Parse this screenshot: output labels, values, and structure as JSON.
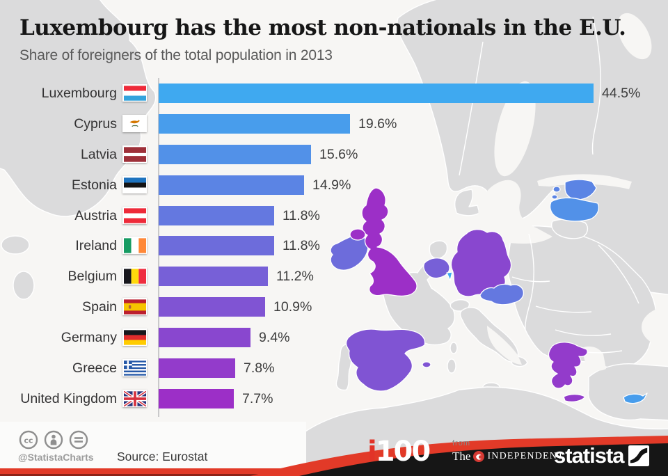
{
  "title": "Luxembourg has the most non-nationals in the E.U.",
  "subtitle": "Share of foreigners of the total population in 2013",
  "chart_data": {
    "type": "bar",
    "orientation": "horizontal",
    "title": "Luxembourg has the most non-nationals in the E.U.",
    "subtitle": "Share of foreigners of the total population in 2013",
    "unit": "%",
    "categories": [
      "Luxembourg",
      "Cyprus",
      "Latvia",
      "Estonia",
      "Austria",
      "Ireland",
      "Belgium",
      "Spain",
      "Germany",
      "Greece",
      "United Kingdom"
    ],
    "values": [
      44.5,
      19.6,
      15.6,
      14.9,
      11.8,
      11.8,
      11.2,
      10.9,
      9.4,
      7.8,
      7.7
    ],
    "labels": [
      "44.5%",
      "19.6%",
      "15.6%",
      "14.9%",
      "11.8%",
      "11.8%",
      "11.2%",
      "10.9%",
      "9.4%",
      "7.8%",
      "7.7%"
    ],
    "xlim": [
      0,
      47
    ],
    "grid": false,
    "legend": "none",
    "bar_colors": [
      "#3FA9F0",
      "#489DEC",
      "#5291E8",
      "#5B84E4",
      "#6478E0",
      "#6D6CDB",
      "#7760D7",
      "#8054D3",
      "#8947CF",
      "#933BCB",
      "#9C2FC7"
    ],
    "flags": [
      "luxembourg",
      "cyprus",
      "latvia",
      "estonia",
      "austria",
      "ireland",
      "belgium",
      "spain",
      "germany",
      "greece",
      "united-kingdom"
    ]
  },
  "map": {
    "land_color": "#DBDBDC",
    "sea_color": "#F7F6F4",
    "border_color": "#FFFFFF",
    "highlighted_countries": [
      "Luxembourg",
      "Cyprus",
      "Latvia",
      "Estonia",
      "Austria",
      "Ireland",
      "Belgium",
      "Spain",
      "Germany",
      "Greece",
      "United Kingdom"
    ]
  },
  "footer": {
    "license_icons": [
      "cc-icon",
      "attribution-icon",
      "no-derivatives-icon"
    ],
    "handle": "@StatistaCharts",
    "source": "Source: Eurostat",
    "i100_i": "i",
    "i100_num": "100",
    "from_label": "from",
    "independent_the": "The",
    "independent_name": "INDEPENDENT",
    "statista": "statista",
    "band_red": "#E23A28",
    "band_black": "#161616"
  }
}
